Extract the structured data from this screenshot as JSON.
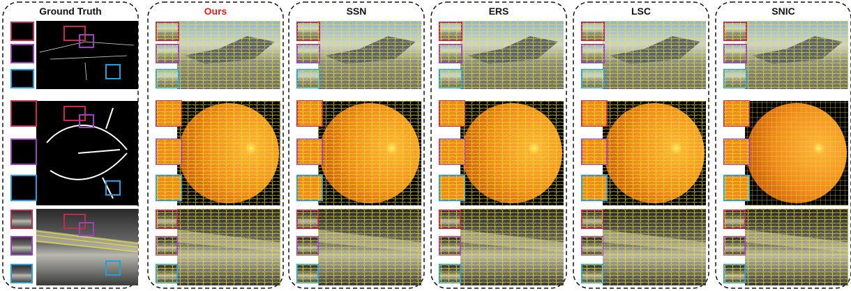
{
  "panels": [
    {
      "title": "Ground Truth"
    },
    {
      "title": "Ours"
    },
    {
      "title": "SSN"
    },
    {
      "title": "ERS"
    },
    {
      "title": "LSC"
    },
    {
      "title": "SNIC"
    }
  ]
}
